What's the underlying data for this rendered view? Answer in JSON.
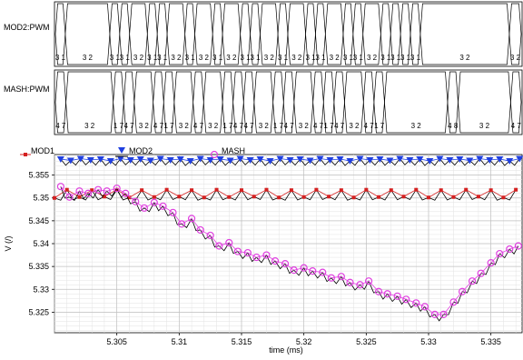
{
  "digital": {
    "signals": [
      {
        "label": "MOD2:PWM",
        "value_sequence": [
          "31",
          "32",
          "31",
          "31",
          "32",
          "31",
          "32",
          "31",
          "32",
          "31",
          "32",
          "31",
          "32",
          "31",
          "32",
          "31",
          "31",
          "32"
        ],
        "visible_values": [
          "3 1",
          "3 2",
          "3 1",
          "3 1",
          "3 2",
          "3 1",
          "3 1",
          "3 2",
          "3 1",
          "3 2",
          "3 1",
          "3 2",
          "3 1",
          "3 1",
          "3 2",
          "3 1",
          "3 2",
          "3 1",
          "3 1",
          "3 2",
          "3 1",
          "3 1",
          "3 2",
          "3 1",
          "3 1",
          "3 1",
          "3 1",
          "3 2"
        ]
      },
      {
        "label": "MASH:PWM",
        "visible_values": [
          "4 7",
          "3 2",
          "1 7",
          "4 7",
          "3 2",
          "4 7",
          "1 7",
          "3 2",
          "4 7",
          "3 2",
          "1 7",
          "4 7",
          "4 7",
          "3 2",
          "1 7",
          "4 7",
          "3 2",
          "4 7",
          "1 7",
          "4 7",
          "3 2",
          "4 7",
          "1 7",
          "3 2",
          "4 8",
          "3 2",
          "4 7"
        ]
      }
    ]
  },
  "chart_data": {
    "type": "line",
    "xlabel": "time (ms)",
    "ylabel": "V (/)",
    "xlim": [
      5.3,
      5.3375
    ],
    "ylim": [
      5.3205,
      5.3595
    ],
    "x_ticks": [
      "5.305",
      "5.31",
      "5.315",
      "5.32",
      "5.325",
      "5.33",
      "5.335"
    ],
    "y_ticks": [
      "5.355",
      "5.35",
      "5.345",
      "5.34",
      "5.335",
      "5.33",
      "5.325"
    ],
    "grid": true,
    "legend_position": "top",
    "series": [
      {
        "name": "MOD1",
        "color": "#d42020",
        "marker": "square",
        "x": [
          5.3,
          5.301,
          5.302,
          5.303,
          5.304,
          5.305,
          5.306,
          5.307,
          5.308,
          5.309,
          5.31,
          5.311,
          5.312,
          5.313,
          5.314,
          5.315,
          5.316,
          5.317,
          5.318,
          5.319,
          5.32,
          5.321,
          5.322,
          5.323,
          5.324,
          5.325,
          5.326,
          5.327,
          5.328,
          5.329,
          5.33,
          5.331,
          5.332,
          5.333,
          5.334,
          5.335,
          5.336,
          5.337
        ],
        "y": [
          5.35,
          5.3518,
          5.3502,
          5.3517,
          5.3503,
          5.3518,
          5.3501,
          5.3517,
          5.3502,
          5.3518,
          5.3503,
          5.3517,
          5.3501,
          5.3518,
          5.3502,
          5.3517,
          5.3503,
          5.3518,
          5.3501,
          5.3517,
          5.3502,
          5.3518,
          5.3503,
          5.3517,
          5.3501,
          5.3518,
          5.3502,
          5.3517,
          5.3503,
          5.3518,
          5.3501,
          5.3517,
          5.3502,
          5.3518,
          5.3503,
          5.3517,
          5.3501,
          5.3518
        ]
      },
      {
        "name": "MOD2",
        "color": "#1f3fe0",
        "marker": "triangle-down",
        "x": [
          5.3005,
          5.3013,
          5.3021,
          5.3029,
          5.3037,
          5.3045,
          5.3053,
          5.3061,
          5.3069,
          5.3077,
          5.3085,
          5.3093,
          5.3101,
          5.3109,
          5.3117,
          5.3125,
          5.3133,
          5.3141,
          5.3149,
          5.3157,
          5.3165,
          5.3173,
          5.3181,
          5.3189,
          5.3197,
          5.3205,
          5.3213,
          5.3221,
          5.3229,
          5.3237,
          5.3245,
          5.3253,
          5.3261,
          5.3269,
          5.3277,
          5.3285,
          5.3293,
          5.3301,
          5.3309,
          5.3317,
          5.3325,
          5.3333,
          5.3341,
          5.3349,
          5.3357,
          5.3365,
          5.3373
        ],
        "y": [
          5.3585,
          5.3582,
          5.3586,
          5.3583,
          5.3585,
          5.3581,
          5.3586,
          5.3583,
          5.3585,
          5.3582,
          5.3586,
          5.3583,
          5.3585,
          5.3581,
          5.3586,
          5.3583,
          5.3585,
          5.3582,
          5.3586,
          5.3583,
          5.3585,
          5.3581,
          5.3586,
          5.3583,
          5.3585,
          5.3582,
          5.3586,
          5.3583,
          5.3585,
          5.3581,
          5.3586,
          5.3583,
          5.3585,
          5.3582,
          5.3586,
          5.3583,
          5.3585,
          5.3581,
          5.3586,
          5.3583,
          5.3585,
          5.3582,
          5.3586,
          5.3583,
          5.3585,
          5.3581,
          5.3586
        ]
      },
      {
        "name": "MASH",
        "color": "#e040e0",
        "marker": "circle",
        "x": [
          5.3005,
          5.3012,
          5.302,
          5.3027,
          5.3035,
          5.3042,
          5.305,
          5.3057,
          5.3065,
          5.3072,
          5.308,
          5.3087,
          5.3095,
          5.3102,
          5.311,
          5.3117,
          5.3125,
          5.3132,
          5.314,
          5.3147,
          5.3155,
          5.3162,
          5.317,
          5.3177,
          5.3185,
          5.3192,
          5.32,
          5.3207,
          5.3215,
          5.3222,
          5.323,
          5.3237,
          5.3245,
          5.3252,
          5.326,
          5.3267,
          5.3275,
          5.3282,
          5.329,
          5.3297,
          5.3305,
          5.3312,
          5.332,
          5.3327,
          5.3335,
          5.3342,
          5.335,
          5.3357,
          5.3365,
          5.3372
        ],
        "y": [
          5.3525,
          5.3502,
          5.3515,
          5.351,
          5.3518,
          5.3515,
          5.3521,
          5.351,
          5.3492,
          5.3478,
          5.349,
          5.3482,
          5.3468,
          5.3443,
          5.3455,
          5.343,
          5.3418,
          5.3395,
          5.3402,
          5.3383,
          5.338,
          5.337,
          5.3375,
          5.3362,
          5.3356,
          5.3342,
          5.3347,
          5.334,
          5.3337,
          5.3325,
          5.3328,
          5.3315,
          5.331,
          5.3318,
          5.3295,
          5.329,
          5.3285,
          5.3278,
          5.327,
          5.3262,
          5.3245,
          5.3245,
          5.3272,
          5.3295,
          5.3318,
          5.3335,
          5.3358,
          5.3378,
          5.3388,
          5.3395
        ]
      }
    ]
  }
}
